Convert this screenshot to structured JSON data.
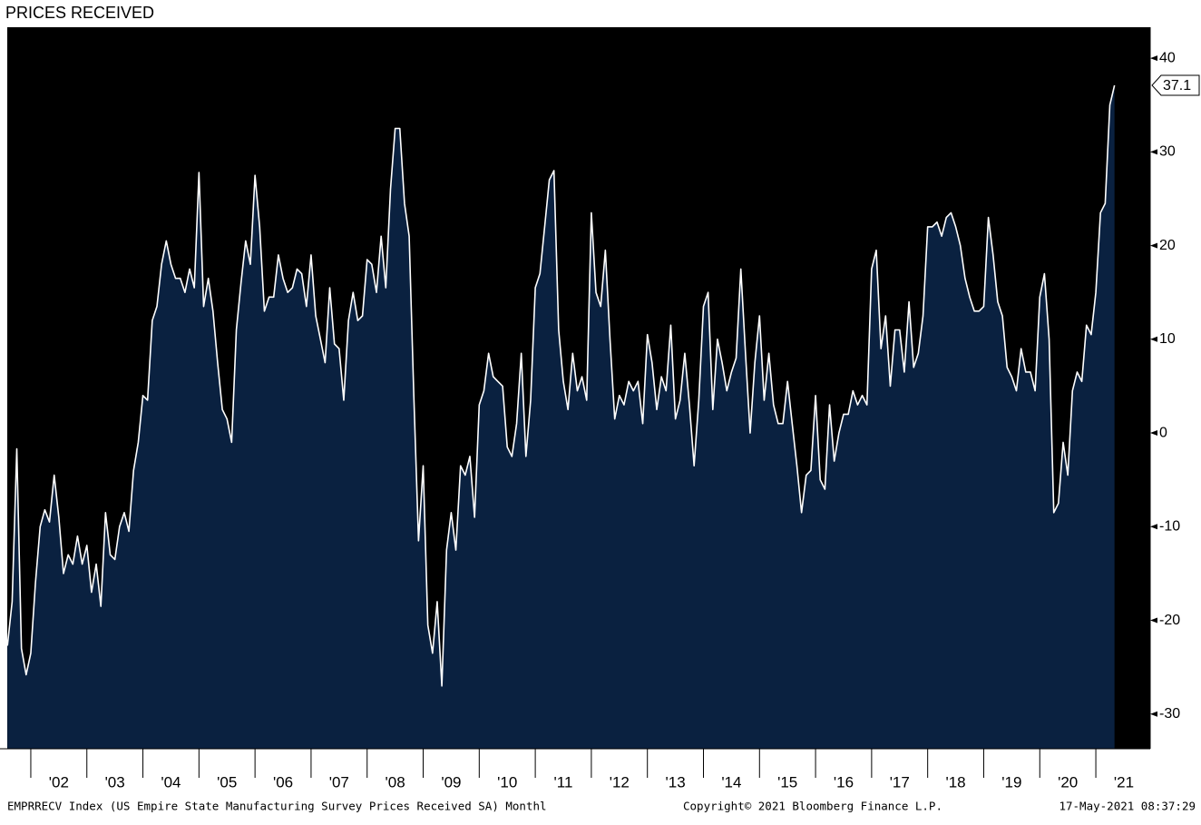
{
  "chart_data": {
    "type": "area",
    "title": "PRICES RECEIVED",
    "source": "EMPRRECV Index (US Empire State Manufacturing Survey Prices Received SA)  Monthl",
    "copyright": "Copyright© 2021 Bloomberg Finance L.P.",
    "timestamp": "17-May-2021 08:37:29",
    "plot_background": "#000000",
    "area_color": "#0a2140",
    "x": [
      2001.583,
      2001.667,
      2001.75,
      2001.833,
      2001.917,
      2002,
      2002.083,
      2002.167,
      2002.25,
      2002.333,
      2002.417,
      2002.5,
      2002.583,
      2002.667,
      2002.75,
      2002.833,
      2002.917,
      2003,
      2003.083,
      2003.167,
      2003.25,
      2003.333,
      2003.417,
      2003.5,
      2003.583,
      2003.667,
      2003.75,
      2003.833,
      2003.917,
      2004,
      2004.083,
      2004.167,
      2004.25,
      2004.333,
      2004.417,
      2004.5,
      2004.583,
      2004.667,
      2004.75,
      2004.833,
      2004.917,
      2005,
      2005.083,
      2005.167,
      2005.25,
      2005.333,
      2005.417,
      2005.5,
      2005.583,
      2005.667,
      2005.75,
      2005.833,
      2005.917,
      2006,
      2006.083,
      2006.167,
      2006.25,
      2006.333,
      2006.417,
      2006.5,
      2006.583,
      2006.667,
      2006.75,
      2006.833,
      2006.917,
      2007,
      2007.083,
      2007.167,
      2007.25,
      2007.333,
      2007.417,
      2007.5,
      2007.583,
      2007.667,
      2007.75,
      2007.833,
      2007.917,
      2008,
      2008.083,
      2008.167,
      2008.25,
      2008.333,
      2008.417,
      2008.5,
      2008.583,
      2008.667,
      2008.75,
      2008.833,
      2008.917,
      2009,
      2009.083,
      2009.167,
      2009.25,
      2009.333,
      2009.417,
      2009.5,
      2009.583,
      2009.667,
      2009.75,
      2009.833,
      2009.917,
      2010,
      2010.083,
      2010.167,
      2010.25,
      2010.333,
      2010.417,
      2010.5,
      2010.583,
      2010.667,
      2010.75,
      2010.833,
      2010.917,
      2011,
      2011.083,
      2011.167,
      2011.25,
      2011.333,
      2011.417,
      2011.5,
      2011.583,
      2011.667,
      2011.75,
      2011.833,
      2011.917,
      2012,
      2012.083,
      2012.167,
      2012.25,
      2012.333,
      2012.417,
      2012.5,
      2012.583,
      2012.667,
      2012.75,
      2012.833,
      2012.917,
      2013,
      2013.083,
      2013.167,
      2013.25,
      2013.333,
      2013.417,
      2013.5,
      2013.583,
      2013.667,
      2013.75,
      2013.833,
      2013.917,
      2014,
      2014.083,
      2014.167,
      2014.25,
      2014.333,
      2014.417,
      2014.5,
      2014.583,
      2014.667,
      2014.75,
      2014.833,
      2014.917,
      2015,
      2015.083,
      2015.167,
      2015.25,
      2015.333,
      2015.417,
      2015.5,
      2015.583,
      2015.667,
      2015.75,
      2015.833,
      2015.917,
      2016,
      2016.083,
      2016.167,
      2016.25,
      2016.333,
      2016.417,
      2016.5,
      2016.583,
      2016.667,
      2016.75,
      2016.833,
      2016.917,
      2017,
      2017.083,
      2017.167,
      2017.25,
      2017.333,
      2017.417,
      2017.5,
      2017.583,
      2017.667,
      2017.75,
      2017.833,
      2017.917,
      2018,
      2018.083,
      2018.167,
      2018.25,
      2018.333,
      2018.417,
      2018.5,
      2018.583,
      2018.667,
      2018.75,
      2018.833,
      2018.917,
      2019,
      2019.083,
      2019.167,
      2019.25,
      2019.333,
      2019.417,
      2019.5,
      2019.583,
      2019.667,
      2019.75,
      2019.833,
      2019.917,
      2020,
      2020.083,
      2020.167,
      2020.25,
      2020.333,
      2020.417,
      2020.5,
      2020.583,
      2020.667,
      2020.75,
      2020.833,
      2020.917,
      2021,
      2021.083,
      2021.167,
      2021.25,
      2021.333
    ],
    "series": [
      {
        "name": "EMPRRECV Index",
        "color": "#ffffff",
        "values": [
          -22.7,
          -18,
          -1.7,
          -23,
          -25.8,
          -23.5,
          -16,
          -10,
          -8.2,
          -9.5,
          -4.5,
          -9,
          -15,
          -13,
          -14,
          -11,
          -14,
          -12,
          -17,
          -14,
          -18.5,
          -8.5,
          -13,
          -13.5,
          -10,
          -8.5,
          -10.5,
          -4,
          -1,
          4,
          3.5,
          12,
          13.5,
          18,
          20.5,
          18,
          16.5,
          16.5,
          15,
          17.5,
          15.5,
          27.8,
          13.5,
          16.5,
          13,
          7.5,
          2.5,
          1.5,
          -1,
          11,
          16,
          20.5,
          18,
          27.5,
          22,
          13,
          14.5,
          14.5,
          19,
          16.5,
          15,
          15.5,
          17.5,
          17,
          13.5,
          19,
          12.5,
          10,
          7.5,
          15.5,
          9.5,
          9,
          3.5,
          12,
          15,
          12,
          12.5,
          18.5,
          18,
          15,
          21,
          15.5,
          26,
          32.5,
          32.5,
          24.5,
          21,
          4,
          -11.5,
          -3.5,
          -20.5,
          -23.5,
          -18,
          -27,
          -12.5,
          -8.5,
          -12.5,
          -3.5,
          -4.5,
          -2.5,
          -9,
          3,
          4.5,
          8.5,
          6,
          5.5,
          5,
          -1.5,
          -2.5,
          1,
          8.5,
          -2.5,
          3.5,
          15.5,
          17,
          22,
          27,
          28,
          11,
          5.5,
          2.5,
          8.5,
          4.5,
          6,
          3.5,
          23.5,
          15,
          13.5,
          19.5,
          10,
          1.5,
          4,
          3,
          5.5,
          4.5,
          5.5,
          1,
          10.5,
          7.5,
          2.5,
          6,
          4.5,
          11.5,
          1.5,
          3.5,
          8.5,
          3,
          -3.5,
          3.5,
          13.5,
          15,
          2.5,
          10,
          7.5,
          4.5,
          6.5,
          8,
          17.5,
          8.5,
          0,
          7.5,
          12.5,
          3.5,
          8.5,
          3,
          1,
          1,
          5.5,
          1,
          -3.5,
          -8.5,
          -4.5,
          -4,
          4,
          -5,
          -6,
          3,
          -3,
          0,
          2,
          2,
          4.5,
          3,
          4,
          3,
          17.5,
          19.5,
          9,
          12.5,
          5,
          11,
          11,
          6.5,
          14,
          7,
          8.5,
          12.5,
          22,
          22,
          22.5,
          21,
          23,
          23.5,
          22,
          20,
          16.5,
          14.5,
          13,
          13,
          13.5,
          23,
          19,
          14,
          12.5,
          7,
          6,
          4.5,
          9,
          6.5,
          6.5,
          4.5,
          14.5,
          17,
          10,
          -8.5,
          -7.5,
          -1,
          -4.5,
          4.5,
          6.5,
          5.5,
          11.5,
          10.5,
          15,
          23.5,
          24.5,
          35,
          37.1
        ]
      }
    ],
    "xlim": [
      2001.58,
      2021.97
    ],
    "xticks": [
      {
        "value": 2002,
        "label": "'02"
      },
      {
        "value": 2003,
        "label": "'03"
      },
      {
        "value": 2004,
        "label": "'04"
      },
      {
        "value": 2005,
        "label": "'05"
      },
      {
        "value": 2006,
        "label": "'06"
      },
      {
        "value": 2007,
        "label": "'07"
      },
      {
        "value": 2008,
        "label": "'08"
      },
      {
        "value": 2009,
        "label": "'09"
      },
      {
        "value": 2010,
        "label": "'10"
      },
      {
        "value": 2011,
        "label": "'11"
      },
      {
        "value": 2012,
        "label": "'12"
      },
      {
        "value": 2013,
        "label": "'13"
      },
      {
        "value": 2014,
        "label": "'14"
      },
      {
        "value": 2015,
        "label": "'15"
      },
      {
        "value": 2016,
        "label": "'16"
      },
      {
        "value": 2017,
        "label": "'17"
      },
      {
        "value": 2018,
        "label": "'18"
      },
      {
        "value": 2019,
        "label": "'19"
      },
      {
        "value": 2020,
        "label": "'20"
      },
      {
        "value": 2021,
        "label": "'21"
      }
    ],
    "ylim": [
      -33.7,
      43.3
    ],
    "yticks": [
      -30,
      -20,
      -10,
      0,
      10,
      20,
      30,
      40
    ],
    "y_axis_side": "right",
    "grid": false
  }
}
